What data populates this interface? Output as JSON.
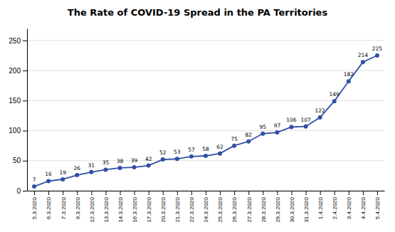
{
  "chart_data": {
    "type": "line",
    "title": "The Rate of COVID-19 Spread in the PA Territories",
    "categories": [
      "5.3.2020",
      "6.3.2020",
      "7.3.2020",
      "9.3.2020",
      "12.3.2020",
      "13.3.2020",
      "14.3.2020",
      "16.3.2020",
      "17.3.2020",
      "20.3.2020",
      "21.3.2020",
      "22.3.2020",
      "24.3.2020",
      "25.3.2020",
      "26.3.2020",
      "27.3.2020",
      "28.3.2020",
      "29.3.2020",
      "30.3.2020",
      "31.3.2020",
      "1.4.2020",
      "2.4.2020",
      "3.4.2020",
      "4.4.2020",
      "5.4.2020"
    ],
    "values": [
      7,
      16,
      19,
      26,
      31,
      35,
      38,
      39,
      42,
      52,
      53,
      57,
      58,
      62,
      75,
      82,
      95,
      97,
      106,
      107,
      122,
      149,
      182,
      214,
      225
    ],
    "color": "#2E4FA5",
    "marker": "circle",
    "ylim": [
      0,
      270
    ],
    "yticks": [
      0,
      50,
      100,
      150,
      200,
      250
    ],
    "grid": true,
    "data_labels": true
  }
}
